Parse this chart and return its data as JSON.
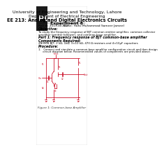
{
  "bg_color": "#ffffff",
  "pdf_badge_color": "#1a1a1a",
  "pdf_text": "PDF",
  "header_lines": [
    "University of Engineering and Technology, Lahore",
    "Department of Electrical Engineering",
    "EE 213: Analog and Digital Electronics Circuits",
    "Experiment 8"
  ],
  "roll_label": "Roll #: 2019-EE-317",
  "name_label": "Name: Hafiz Muhammad Sameer Jameel",
  "section_objective": "Objective:",
  "objective_text": "To study the frequency response of BJT common emitter amplifier, common collector amplifier (emitter follower), and common-base amplifier.",
  "part_title": "Part 1: Frequency response of BJT common-base amplifier",
  "components_label": "Components Required:",
  "components_text": "2N3904 BJT, 2 kΩ, 1kΩ, 3×10 kΩ, 470 Ω resistors and 4×10μF capacitors",
  "procedure_label": "Procedure:",
  "procedure_text": "1.   Connect and simulate a common-base amplifier configuration circuit and then design\n     circuit diagram below. Recommended values of components are provided above.",
  "figure_label": "Figure 1: Common-base Amplifier",
  "circuit_color": "#c8001a",
  "page_color": "#f5f5f5"
}
